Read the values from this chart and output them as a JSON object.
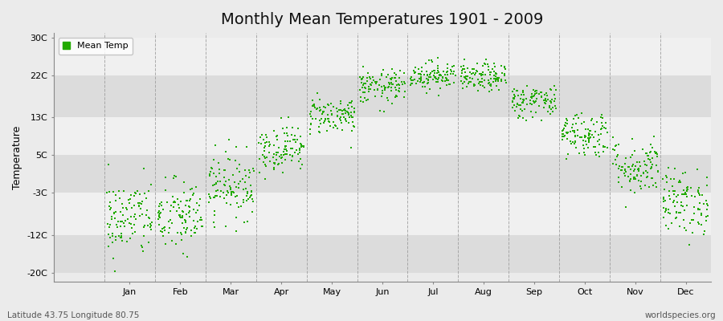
{
  "title": "Monthly Mean Temperatures 1901 - 2009",
  "ylabel": "Temperature",
  "xlabel_bottom_left": "Latitude 43.75 Longitude 80.75",
  "xlabel_bottom_right": "worldspecies.org",
  "legend_label": "Mean Temp",
  "yticks": [
    -20,
    -12,
    -3,
    5,
    13,
    22,
    30
  ],
  "ytick_labels": [
    "-20C",
    "-12C",
    "-3C",
    "5C",
    "13C",
    "22C",
    "30C"
  ],
  "ylim": [
    -22,
    31
  ],
  "months": [
    "Jan",
    "Feb",
    "Mar",
    "Apr",
    "May",
    "Jun",
    "Jul",
    "Aug",
    "Sep",
    "Oct",
    "Nov",
    "Dec"
  ],
  "monthly_means": [
    -8.5,
    -8.2,
    -1.5,
    6.5,
    13.5,
    19.5,
    22.0,
    21.5,
    16.5,
    9.5,
    2.5,
    -5.0
  ],
  "monthly_stds": [
    4.2,
    4.0,
    3.5,
    2.5,
    2.0,
    1.8,
    1.5,
    1.5,
    1.8,
    2.5,
    3.0,
    3.5
  ],
  "n_years": 109,
  "dot_color": "#22aa00",
  "dot_size": 3,
  "background_color": "#ebebeb",
  "stripe_light": "#f5f5f5",
  "stripe_dark": "#dcdcdc",
  "grid_color": "#999999",
  "title_fontsize": 14,
  "axis_fontsize": 9,
  "tick_fontsize": 8,
  "legend_fontsize": 8,
  "random_seed": 42
}
